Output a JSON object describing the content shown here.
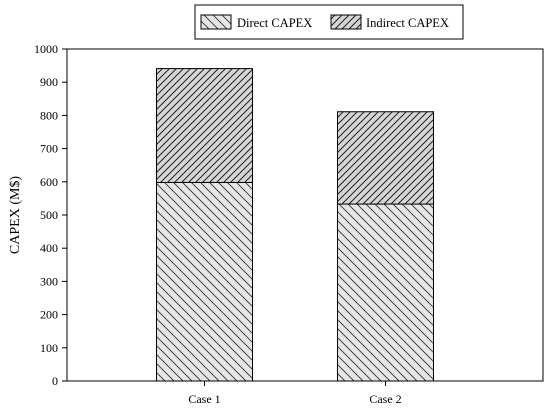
{
  "chart_data": {
    "type": "bar",
    "stacked": true,
    "categories": [
      "Case 1",
      "Case 2"
    ],
    "series": [
      {
        "name": "Direct CAPEX",
        "values": [
          598,
          533
        ],
        "pattern": "hatch-back-diagonal-light"
      },
      {
        "name": "Indirect CAPEX",
        "values": [
          343,
          278
        ],
        "pattern": "hatch-forward-diagonal-dense"
      }
    ],
    "title": "",
    "xlabel": "",
    "ylabel": "CAPEX (M$)",
    "ylim": [
      0,
      1000
    ],
    "yticks": [
      "0",
      "100",
      "200",
      "300",
      "400",
      "500",
      "600",
      "700",
      "800",
      "900",
      "1000"
    ],
    "grid": false,
    "legend_position": "top-center"
  }
}
